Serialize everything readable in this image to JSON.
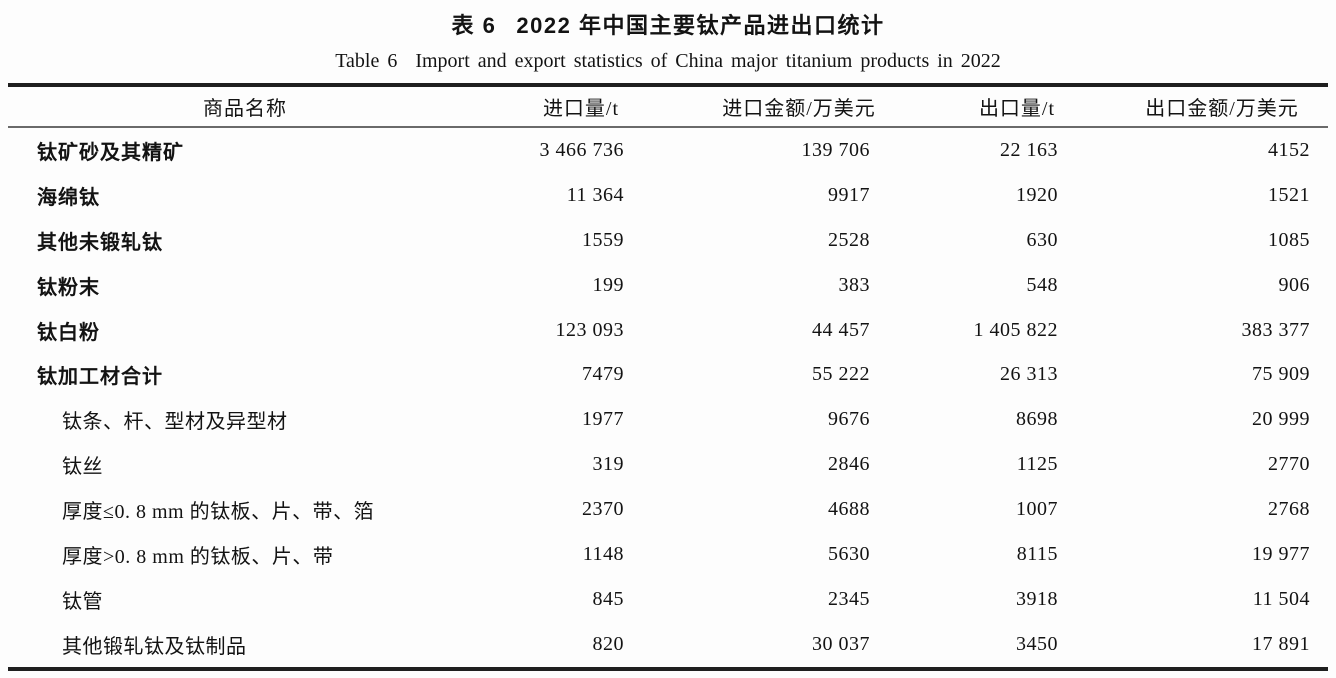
{
  "page": {
    "title_cn": {
      "label": "表 6",
      "text": "2022 年中国主要钛产品进出口统计"
    },
    "title_en": {
      "label": "Table 6",
      "text": "Import and export statistics of China major titanium products in 2022"
    }
  },
  "table": {
    "columns": [
      "商品名称",
      "进口量/t",
      "进口金额/万美元",
      "出口量/t",
      "出口金额/万美元"
    ],
    "rows": [
      {
        "name": "钛矿砂及其精矿",
        "level": "main",
        "import_qty": "3 466 736",
        "import_value": "139 706",
        "export_qty": "22 163",
        "export_value": "4152"
      },
      {
        "name": "海绵钛",
        "level": "main",
        "import_qty": "11 364",
        "import_value": "9917",
        "export_qty": "1920",
        "export_value": "1521"
      },
      {
        "name": "其他未锻轧钛",
        "level": "main",
        "import_qty": "1559",
        "import_value": "2528",
        "export_qty": "630",
        "export_value": "1085"
      },
      {
        "name": "钛粉末",
        "level": "main",
        "import_qty": "199",
        "import_value": "383",
        "export_qty": "548",
        "export_value": "906"
      },
      {
        "name": "钛白粉",
        "level": "main",
        "import_qty": "123 093",
        "import_value": "44 457",
        "export_qty": "1 405 822",
        "export_value": "383 377"
      },
      {
        "name": "钛加工材合计",
        "level": "main",
        "import_qty": "7479",
        "import_value": "55 222",
        "export_qty": "26 313",
        "export_value": "75 909"
      },
      {
        "name": "钛条、杆、型材及异型材",
        "level": "sub",
        "import_qty": "1977",
        "import_value": "9676",
        "export_qty": "8698",
        "export_value": "20 999"
      },
      {
        "name": "钛丝",
        "level": "sub",
        "import_qty": "319",
        "import_value": "2846",
        "export_qty": "1125",
        "export_value": "2770"
      },
      {
        "name": "厚度≤0. 8 mm 的钛板、片、带、箔",
        "level": "sub",
        "import_qty": "2370",
        "import_value": "4688",
        "export_qty": "1007",
        "export_value": "2768"
      },
      {
        "name": "厚度>0. 8 mm 的钛板、片、带",
        "level": "sub",
        "import_qty": "1148",
        "import_value": "5630",
        "export_qty": "8115",
        "export_value": "19 977"
      },
      {
        "name": "钛管",
        "level": "sub",
        "import_qty": "845",
        "import_value": "2345",
        "export_qty": "3918",
        "export_value": "11 504"
      },
      {
        "name": "其他锻轧钛及钛制品",
        "level": "sub",
        "import_qty": "820",
        "import_value": "30 037",
        "export_qty": "3450",
        "export_value": "17 891"
      }
    ]
  }
}
